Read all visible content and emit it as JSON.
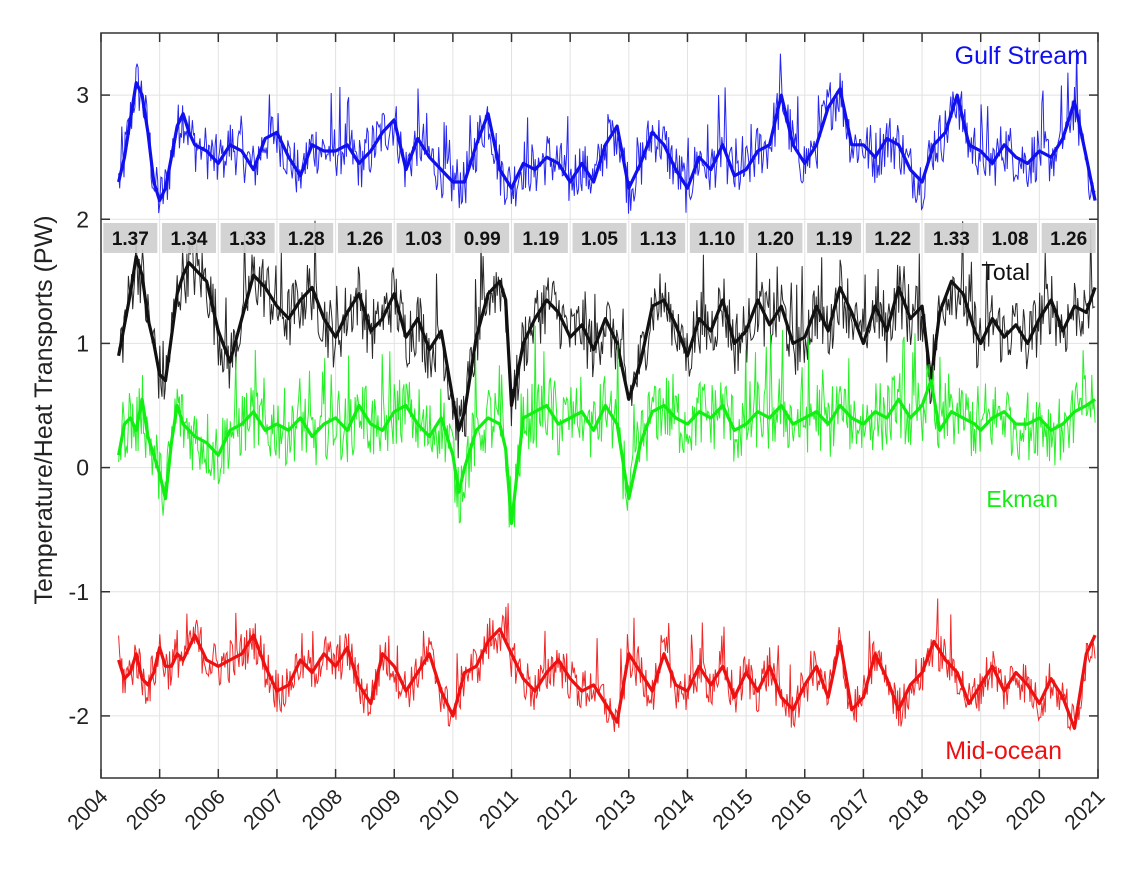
{
  "chart_data": {
    "type": "line",
    "ylabel": "Temperature/Heat Transports (PW)",
    "xlim": [
      2004,
      2021
    ],
    "ylim": [
      -2.5,
      3.5
    ],
    "x_ticks": [
      "2004",
      "2005",
      "2006",
      "2007",
      "2008",
      "2009",
      "2010",
      "2011",
      "2012",
      "2013",
      "2014",
      "2015",
      "2016",
      "2017",
      "2018",
      "2019",
      "2020",
      "2021"
    ],
    "y_ticks": [
      "-2",
      "-1",
      "0",
      "1",
      "2",
      "3"
    ],
    "grid": true,
    "annual_labels": {
      "years": [
        2004.5,
        2005.5,
        2006.5,
        2007.5,
        2008.5,
        2009.5,
        2010.5,
        2011.5,
        2012.5,
        2013.5,
        2014.5,
        2015.5,
        2016.5,
        2017.5,
        2018.5,
        2019.5,
        2020.5
      ],
      "texts": [
        "1.37",
        "1.34",
        "1.33",
        "1.28",
        "1.26",
        "1.03",
        "0.99",
        "1.19",
        "1.05",
        "1.13",
        "1.10",
        "1.20",
        "1.19",
        "1.22",
        "1.33",
        "1.08",
        "1.26"
      ]
    },
    "series": [
      {
        "name": "Gulf Stream",
        "color": "#1010ee",
        "x": [
          2004.3,
          2004.4,
          2004.5,
          2004.6,
          2004.7,
          2004.8,
          2004.9,
          2005.0,
          2005.1,
          2005.2,
          2005.3,
          2005.4,
          2005.5,
          2005.6,
          2005.8,
          2006.0,
          2006.2,
          2006.4,
          2006.6,
          2006.8,
          2007.0,
          2007.2,
          2007.4,
          2007.6,
          2007.8,
          2008.0,
          2008.2,
          2008.4,
          2008.6,
          2008.8,
          2009.0,
          2009.2,
          2009.4,
          2009.6,
          2009.8,
          2010.0,
          2010.2,
          2010.4,
          2010.6,
          2010.8,
          2011.0,
          2011.2,
          2011.4,
          2011.6,
          2011.8,
          2012.0,
          2012.2,
          2012.4,
          2012.6,
          2012.8,
          2013.0,
          2013.2,
          2013.4,
          2013.6,
          2013.8,
          2014.0,
          2014.2,
          2014.4,
          2014.6,
          2014.8,
          2015.0,
          2015.2,
          2015.4,
          2015.6,
          2015.8,
          2016.0,
          2016.2,
          2016.4,
          2016.6,
          2016.8,
          2017.0,
          2017.2,
          2017.4,
          2017.6,
          2017.8,
          2018.0,
          2018.2,
          2018.4,
          2018.6,
          2018.8,
          2019.0,
          2019.2,
          2019.4,
          2019.6,
          2019.8,
          2020.0,
          2020.2,
          2020.4,
          2020.6,
          2020.8,
          2020.95
        ],
        "values": [
          2.3,
          2.5,
          2.8,
          3.1,
          3.0,
          2.7,
          2.3,
          2.15,
          2.25,
          2.5,
          2.75,
          2.85,
          2.7,
          2.6,
          2.55,
          2.45,
          2.6,
          2.55,
          2.4,
          2.65,
          2.7,
          2.5,
          2.35,
          2.6,
          2.55,
          2.55,
          2.6,
          2.45,
          2.55,
          2.7,
          2.8,
          2.4,
          2.65,
          2.5,
          2.4,
          2.3,
          2.3,
          2.6,
          2.85,
          2.4,
          2.25,
          2.45,
          2.4,
          2.5,
          2.45,
          2.3,
          2.45,
          2.3,
          2.6,
          2.75,
          2.25,
          2.45,
          2.7,
          2.6,
          2.4,
          2.25,
          2.5,
          2.4,
          2.6,
          2.35,
          2.4,
          2.55,
          2.6,
          3.0,
          2.6,
          2.45,
          2.6,
          2.9,
          3.05,
          2.6,
          2.6,
          2.5,
          2.65,
          2.6,
          2.4,
          2.3,
          2.6,
          2.7,
          3.0,
          2.6,
          2.55,
          2.45,
          2.6,
          2.5,
          2.45,
          2.55,
          2.5,
          2.65,
          2.95,
          2.5,
          2.15
        ]
      },
      {
        "name": "Total",
        "color": "#111111",
        "x": [
          2004.3,
          2004.4,
          2004.5,
          2004.6,
          2004.7,
          2004.8,
          2004.9,
          2005.0,
          2005.1,
          2005.2,
          2005.3,
          2005.4,
          2005.5,
          2005.6,
          2005.8,
          2006.0,
          2006.2,
          2006.4,
          2006.6,
          2006.8,
          2007.0,
          2007.2,
          2007.4,
          2007.6,
          2007.8,
          2008.0,
          2008.2,
          2008.4,
          2008.6,
          2008.8,
          2009.0,
          2009.2,
          2009.4,
          2009.6,
          2009.8,
          2010.0,
          2010.1,
          2010.2,
          2010.4,
          2010.6,
          2010.8,
          2010.9,
          2011.0,
          2011.2,
          2011.4,
          2011.6,
          2011.8,
          2012.0,
          2012.2,
          2012.4,
          2012.6,
          2012.8,
          2013.0,
          2013.2,
          2013.4,
          2013.6,
          2013.8,
          2014.0,
          2014.2,
          2014.4,
          2014.6,
          2014.8,
          2015.0,
          2015.2,
          2015.4,
          2015.6,
          2015.8,
          2016.0,
          2016.2,
          2016.4,
          2016.6,
          2016.8,
          2017.0,
          2017.2,
          2017.4,
          2017.6,
          2017.8,
          2018.0,
          2018.15,
          2018.3,
          2018.5,
          2018.7,
          2018.9,
          2019.0,
          2019.2,
          2019.4,
          2019.6,
          2019.8,
          2020.0,
          2020.2,
          2020.4,
          2020.6,
          2020.8,
          2020.95
        ],
        "values": [
          0.9,
          1.15,
          1.4,
          1.7,
          1.55,
          1.2,
          1.0,
          0.75,
          0.7,
          1.05,
          1.4,
          1.55,
          1.65,
          1.6,
          1.5,
          1.1,
          0.85,
          1.2,
          1.55,
          1.45,
          1.3,
          1.2,
          1.35,
          1.45,
          1.2,
          1.05,
          1.25,
          1.4,
          1.1,
          1.2,
          1.4,
          1.05,
          1.2,
          0.95,
          1.1,
          0.55,
          0.3,
          0.45,
          1.05,
          1.4,
          1.5,
          1.35,
          0.5,
          1.0,
          1.2,
          1.35,
          1.25,
          1.05,
          1.15,
          0.95,
          1.2,
          1.0,
          0.55,
          0.85,
          1.3,
          1.35,
          1.15,
          0.9,
          1.2,
          1.1,
          1.35,
          1.0,
          1.1,
          1.35,
          1.15,
          1.3,
          1.0,
          1.05,
          1.3,
          1.1,
          1.45,
          1.25,
          1.0,
          1.3,
          1.1,
          1.45,
          1.2,
          1.3,
          0.7,
          1.25,
          1.5,
          1.4,
          1.1,
          1.0,
          1.2,
          1.05,
          1.15,
          1.0,
          1.2,
          1.35,
          1.1,
          1.3,
          1.25,
          1.45
        ]
      },
      {
        "name": "Ekman",
        "color": "#11ee11",
        "x": [
          2004.3,
          2004.4,
          2004.5,
          2004.6,
          2004.7,
          2004.8,
          2004.9,
          2005.0,
          2005.1,
          2005.2,
          2005.3,
          2005.4,
          2005.5,
          2005.6,
          2005.8,
          2006.0,
          2006.2,
          2006.4,
          2006.6,
          2006.8,
          2007.0,
          2007.2,
          2007.4,
          2007.6,
          2007.8,
          2008.0,
          2008.2,
          2008.4,
          2008.6,
          2008.8,
          2009.0,
          2009.2,
          2009.4,
          2009.6,
          2009.8,
          2010.0,
          2010.1,
          2010.2,
          2010.4,
          2010.6,
          2010.8,
          2010.9,
          2011.0,
          2011.2,
          2011.4,
          2011.6,
          2011.8,
          2012.0,
          2012.2,
          2012.4,
          2012.6,
          2012.8,
          2013.0,
          2013.2,
          2013.4,
          2013.6,
          2013.8,
          2014.0,
          2014.2,
          2014.4,
          2014.6,
          2014.8,
          2015.0,
          2015.2,
          2015.4,
          2015.6,
          2015.8,
          2016.0,
          2016.2,
          2016.4,
          2016.6,
          2016.8,
          2017.0,
          2017.2,
          2017.4,
          2017.6,
          2017.8,
          2018.0,
          2018.15,
          2018.3,
          2018.5,
          2018.7,
          2018.9,
          2019.0,
          2019.2,
          2019.4,
          2019.6,
          2019.8,
          2020.0,
          2020.2,
          2020.4,
          2020.6,
          2020.8,
          2020.95
        ],
        "values": [
          0.1,
          0.35,
          0.4,
          0.3,
          0.55,
          0.25,
          0.1,
          -0.05,
          -0.25,
          0.2,
          0.5,
          0.35,
          0.3,
          0.25,
          0.2,
          0.1,
          0.3,
          0.35,
          0.45,
          0.3,
          0.35,
          0.3,
          0.4,
          0.25,
          0.35,
          0.4,
          0.3,
          0.5,
          0.35,
          0.3,
          0.45,
          0.5,
          0.35,
          0.25,
          0.4,
          0.1,
          -0.2,
          0.0,
          0.3,
          0.4,
          0.35,
          0.15,
          -0.45,
          0.4,
          0.45,
          0.5,
          0.35,
          0.4,
          0.45,
          0.3,
          0.5,
          0.35,
          -0.25,
          0.2,
          0.45,
          0.5,
          0.4,
          0.35,
          0.45,
          0.4,
          0.5,
          0.3,
          0.35,
          0.45,
          0.4,
          0.5,
          0.35,
          0.4,
          0.45,
          0.35,
          0.5,
          0.4,
          0.35,
          0.45,
          0.4,
          0.55,
          0.4,
          0.5,
          0.7,
          0.3,
          0.45,
          0.4,
          0.35,
          0.3,
          0.4,
          0.45,
          0.35,
          0.35,
          0.4,
          0.3,
          0.35,
          0.45,
          0.5,
          0.55
        ]
      },
      {
        "name": "Mid-ocean",
        "color": "#ee1111",
        "x": [
          2004.3,
          2004.4,
          2004.5,
          2004.6,
          2004.7,
          2004.8,
          2004.9,
          2005.0,
          2005.1,
          2005.2,
          2005.3,
          2005.4,
          2005.5,
          2005.6,
          2005.8,
          2006.0,
          2006.2,
          2006.4,
          2006.6,
          2006.8,
          2007.0,
          2007.2,
          2007.4,
          2007.6,
          2007.8,
          2008.0,
          2008.2,
          2008.4,
          2008.6,
          2008.8,
          2009.0,
          2009.2,
          2009.4,
          2009.6,
          2009.8,
          2010.0,
          2010.2,
          2010.4,
          2010.6,
          2010.8,
          2011.0,
          2011.2,
          2011.4,
          2011.6,
          2011.8,
          2012.0,
          2012.2,
          2012.4,
          2012.6,
          2012.8,
          2013.0,
          2013.2,
          2013.4,
          2013.6,
          2013.8,
          2014.0,
          2014.2,
          2014.4,
          2014.6,
          2014.8,
          2015.0,
          2015.2,
          2015.4,
          2015.6,
          2015.8,
          2016.0,
          2016.2,
          2016.4,
          2016.6,
          2016.8,
          2017.0,
          2017.2,
          2017.4,
          2017.6,
          2017.8,
          2018.0,
          2018.2,
          2018.4,
          2018.6,
          2018.8,
          2019.0,
          2019.2,
          2019.4,
          2019.6,
          2019.8,
          2020.0,
          2020.2,
          2020.4,
          2020.6,
          2020.8,
          2020.95
        ],
        "values": [
          -1.55,
          -1.7,
          -1.65,
          -1.5,
          -1.7,
          -1.75,
          -1.65,
          -1.45,
          -1.6,
          -1.6,
          -1.5,
          -1.55,
          -1.45,
          -1.35,
          -1.55,
          -1.6,
          -1.55,
          -1.5,
          -1.35,
          -1.6,
          -1.8,
          -1.75,
          -1.55,
          -1.65,
          -1.5,
          -1.6,
          -1.45,
          -1.75,
          -1.9,
          -1.5,
          -1.6,
          -1.8,
          -1.65,
          -1.5,
          -1.8,
          -2.0,
          -1.65,
          -1.6,
          -1.4,
          -1.3,
          -1.5,
          -1.7,
          -1.8,
          -1.65,
          -1.55,
          -1.7,
          -1.8,
          -1.75,
          -1.9,
          -2.05,
          -1.5,
          -1.65,
          -1.8,
          -1.5,
          -1.75,
          -1.8,
          -1.6,
          -1.75,
          -1.6,
          -1.85,
          -1.65,
          -1.8,
          -1.6,
          -1.85,
          -1.95,
          -1.75,
          -1.6,
          -1.85,
          -1.4,
          -1.95,
          -1.85,
          -1.5,
          -1.7,
          -1.95,
          -1.75,
          -1.65,
          -1.4,
          -1.55,
          -1.65,
          -1.9,
          -1.75,
          -1.6,
          -1.8,
          -1.65,
          -1.75,
          -1.9,
          -1.7,
          -1.85,
          -2.1,
          -1.5,
          -1.35
        ]
      }
    ],
    "series_labels": [
      {
        "text": "Gulf Stream",
        "color": "#1010ee"
      },
      {
        "text": "Total",
        "color": "#111111"
      },
      {
        "text": "Ekman",
        "color": "#11ee11"
      },
      {
        "text": "Mid-ocean",
        "color": "#ee1111"
      }
    ]
  }
}
